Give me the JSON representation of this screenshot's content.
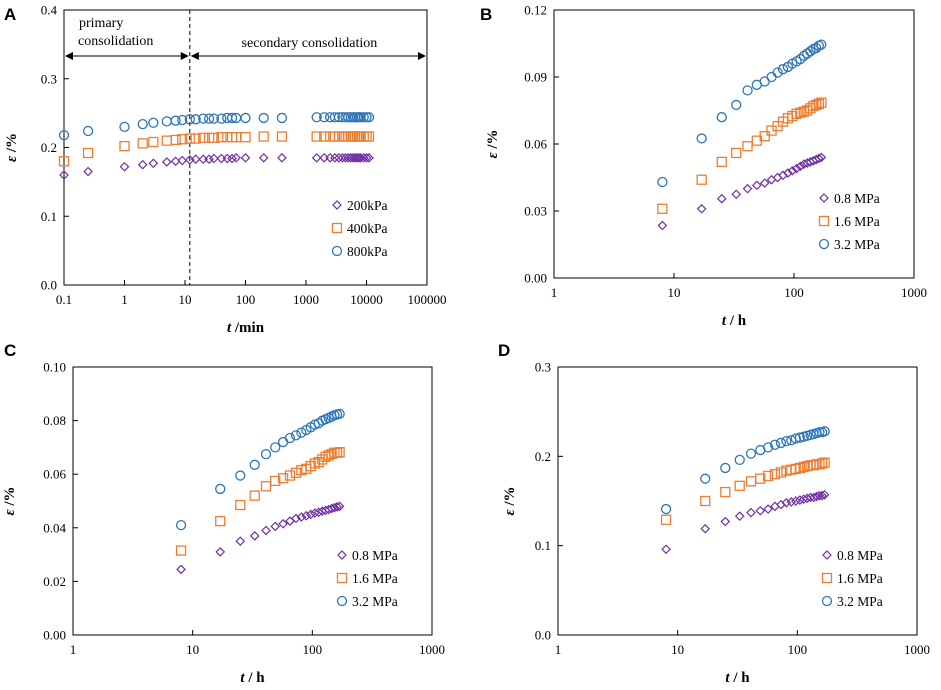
{
  "colors": {
    "purple": "#7030a0",
    "orange": "#ed7d31",
    "blue": "#2e75b6"
  },
  "chart_data": [
    {
      "panel": "A",
      "type": "scatter",
      "xscale": "log",
      "xlim": [
        0.1,
        100000
      ],
      "ylim": [
        0,
        0.4
      ],
      "xticks": [
        "0.1",
        "1",
        "10",
        "100",
        "1000",
        "10000",
        "100000"
      ],
      "yticks": [
        "0.0",
        "0.1",
        "0.2",
        "0.3",
        "0.4"
      ],
      "xlabel_var": "t",
      "xlabel_unit": " /min",
      "ylabel_var": "ε",
      "ylabel_unit": " /%",
      "legend_position": "bottom-right",
      "annotations": {
        "primary_line1": "primary",
        "primary_line2": "consolidation",
        "secondary": "secondary consolidation",
        "divider_x": 12
      },
      "series": [
        {
          "name": "200kPa",
          "marker": "diamond",
          "color": "purple",
          "x": [
            0.1,
            0.25,
            1,
            2,
            3,
            5,
            7,
            9,
            12,
            15,
            20,
            25,
            30,
            40,
            50,
            60,
            70,
            100,
            200,
            400,
            1500,
            2000,
            2500,
            3000,
            3500,
            4000,
            4500,
            5000,
            5500,
            6000,
            6500,
            7000,
            7500,
            8000,
            9000,
            10000,
            11000
          ],
          "y": [
            0.16,
            0.165,
            0.172,
            0.175,
            0.177,
            0.179,
            0.18,
            0.181,
            0.182,
            0.183,
            0.183,
            0.183,
            0.184,
            0.184,
            0.184,
            0.184,
            0.185,
            0.185,
            0.185,
            0.185,
            0.185,
            0.185,
            0.185,
            0.185,
            0.185,
            0.185,
            0.185,
            0.185,
            0.185,
            0.185,
            0.185,
            0.185,
            0.185,
            0.185,
            0.185,
            0.185,
            0.185
          ]
        },
        {
          "name": "400kPa",
          "marker": "square",
          "color": "orange",
          "x": [
            0.1,
            0.25,
            1,
            2,
            3,
            5,
            7,
            9,
            12,
            15,
            20,
            25,
            30,
            40,
            50,
            60,
            70,
            100,
            200,
            400,
            1500,
            2000,
            2500,
            3000,
            3500,
            4000,
            4500,
            5000,
            5500,
            6000,
            6500,
            7000,
            7500,
            8000,
            9000,
            10000,
            11000
          ],
          "y": [
            0.18,
            0.192,
            0.202,
            0.206,
            0.208,
            0.21,
            0.211,
            0.212,
            0.213,
            0.213,
            0.214,
            0.214,
            0.214,
            0.215,
            0.215,
            0.215,
            0.215,
            0.215,
            0.216,
            0.216,
            0.216,
            0.216,
            0.216,
            0.216,
            0.216,
            0.216,
            0.216,
            0.216,
            0.216,
            0.216,
            0.216,
            0.216,
            0.216,
            0.216,
            0.216,
            0.216,
            0.216
          ]
        },
        {
          "name": "800kPa",
          "marker": "circle",
          "color": "blue",
          "x": [
            0.1,
            0.25,
            1,
            2,
            3,
            5,
            7,
            9,
            12,
            15,
            20,
            25,
            30,
            40,
            50,
            60,
            70,
            100,
            200,
            400,
            1500,
            2000,
            2500,
            3000,
            3500,
            4000,
            4500,
            5000,
            5500,
            6000,
            6500,
            7000,
            7500,
            8000,
            9000,
            10000,
            11000
          ],
          "y": [
            0.218,
            0.224,
            0.23,
            0.234,
            0.236,
            0.238,
            0.239,
            0.24,
            0.241,
            0.241,
            0.242,
            0.242,
            0.242,
            0.242,
            0.243,
            0.243,
            0.243,
            0.243,
            0.243,
            0.243,
            0.244,
            0.244,
            0.244,
            0.244,
            0.244,
            0.244,
            0.244,
            0.244,
            0.244,
            0.244,
            0.244,
            0.244,
            0.244,
            0.244,
            0.244,
            0.244,
            0.244
          ]
        }
      ]
    },
    {
      "panel": "B",
      "type": "scatter",
      "xscale": "log",
      "xlim": [
        1,
        1000
      ],
      "ylim": [
        0,
        0.12
      ],
      "xticks": [
        "1",
        "10",
        "100",
        "1000"
      ],
      "yticks": [
        "0.00",
        "0.03",
        "0.06",
        "0.09",
        "0.12"
      ],
      "xlabel_var": "t",
      "xlabel_unit": " / h",
      "ylabel_var": "ε",
      "ylabel_unit": " /%",
      "legend_position": "bottom-right",
      "series": [
        {
          "name": "0.8 MPa",
          "marker": "diamond",
          "color": "purple",
          "x": [
            8,
            17,
            25,
            33,
            41,
            49,
            57,
            65,
            73,
            81,
            89,
            97,
            105,
            113,
            121,
            129,
            137,
            145,
            153,
            161,
            169
          ],
          "y": [
            0.0235,
            0.031,
            0.0355,
            0.0375,
            0.04,
            0.0415,
            0.0425,
            0.044,
            0.045,
            0.046,
            0.047,
            0.048,
            0.049,
            0.05,
            0.051,
            0.0515,
            0.052,
            0.0525,
            0.053,
            0.0535,
            0.054
          ]
        },
        {
          "name": "1.6 MPa",
          "marker": "square",
          "color": "orange",
          "x": [
            8,
            17,
            25,
            33,
            41,
            49,
            57,
            65,
            73,
            81,
            89,
            97,
            105,
            113,
            121,
            129,
            137,
            145,
            153,
            161,
            169
          ],
          "y": [
            0.031,
            0.044,
            0.052,
            0.056,
            0.059,
            0.0615,
            0.0635,
            0.066,
            0.068,
            0.07,
            0.0715,
            0.0725,
            0.0735,
            0.074,
            0.0745,
            0.075,
            0.076,
            0.077,
            0.0775,
            0.078,
            0.0785
          ]
        },
        {
          "name": "3.2 MPa",
          "marker": "circle",
          "color": "blue",
          "x": [
            8,
            17,
            25,
            33,
            41,
            49,
            57,
            65,
            73,
            81,
            89,
            97,
            105,
            113,
            121,
            129,
            137,
            145,
            153,
            161,
            169
          ],
          "y": [
            0.043,
            0.0625,
            0.072,
            0.0775,
            0.084,
            0.0865,
            0.088,
            0.09,
            0.092,
            0.0935,
            0.0945,
            0.096,
            0.097,
            0.098,
            0.0995,
            0.1005,
            0.1015,
            0.1025,
            0.103,
            0.104,
            0.1045
          ]
        }
      ]
    },
    {
      "panel": "C",
      "type": "scatter",
      "xscale": "log",
      "xlim": [
        1,
        1000
      ],
      "ylim": [
        0,
        0.1
      ],
      "xticks": [
        "1",
        "10",
        "100",
        "1000"
      ],
      "yticks": [
        "0.00",
        "0.02",
        "0.04",
        "0.06",
        "0.08",
        "0.10"
      ],
      "xlabel_var": "t",
      "xlabel_unit": " / h",
      "ylabel_var": "ε",
      "ylabel_unit": " /%",
      "legend_position": "bottom-right",
      "series": [
        {
          "name": "0.8 MPa",
          "marker": "diamond",
          "color": "purple",
          "x": [
            8,
            17,
            25,
            33,
            41,
            49,
            57,
            65,
            73,
            81,
            89,
            97,
            105,
            113,
            121,
            129,
            137,
            145,
            153,
            161,
            169
          ],
          "y": [
            0.0245,
            0.031,
            0.035,
            0.037,
            0.039,
            0.0405,
            0.0415,
            0.0425,
            0.0435,
            0.044,
            0.0445,
            0.045,
            0.0455,
            0.0458,
            0.0462,
            0.0465,
            0.0468,
            0.0472,
            0.0475,
            0.0478,
            0.048
          ]
        },
        {
          "name": "1.6 MPa",
          "marker": "square",
          "color": "orange",
          "x": [
            8,
            17,
            25,
            33,
            41,
            49,
            57,
            65,
            73,
            81,
            89,
            97,
            105,
            113,
            121,
            129,
            137,
            145,
            153,
            161,
            169
          ],
          "y": [
            0.0315,
            0.0425,
            0.0485,
            0.052,
            0.0555,
            0.0575,
            0.0585,
            0.0595,
            0.0605,
            0.0615,
            0.062,
            0.063,
            0.064,
            0.0645,
            0.0655,
            0.0665,
            0.067,
            0.0675,
            0.068,
            0.068,
            0.0682
          ]
        },
        {
          "name": "3.2 MPa",
          "marker": "circle",
          "color": "blue",
          "x": [
            8,
            17,
            25,
            33,
            41,
            49,
            57,
            65,
            73,
            81,
            89,
            97,
            105,
            113,
            121,
            129,
            137,
            145,
            153,
            161,
            169
          ],
          "y": [
            0.041,
            0.0545,
            0.0595,
            0.0635,
            0.0675,
            0.07,
            0.072,
            0.0735,
            0.0745,
            0.0755,
            0.0765,
            0.0775,
            0.0785,
            0.079,
            0.08,
            0.0805,
            0.081,
            0.0815,
            0.082,
            0.0823,
            0.0825
          ]
        }
      ]
    },
    {
      "panel": "D",
      "type": "scatter",
      "xscale": "log",
      "xlim": [
        1,
        1000
      ],
      "ylim": [
        0,
        0.3
      ],
      "xticks": [
        "1",
        "10",
        "100",
        "1000"
      ],
      "yticks": [
        "0.0",
        "0.1",
        "0.2",
        "0.3"
      ],
      "xlabel_var": "t",
      "xlabel_unit": " / h",
      "ylabel_var": "ε",
      "ylabel_unit": " /%",
      "legend_position": "bottom-right",
      "series": [
        {
          "name": "0.8 MPa",
          "marker": "diamond",
          "color": "purple",
          "x": [
            8,
            17,
            25,
            33,
            41,
            49,
            57,
            65,
            73,
            81,
            89,
            97,
            105,
            113,
            121,
            129,
            137,
            145,
            153,
            161,
            169
          ],
          "y": [
            0.096,
            0.119,
            0.127,
            0.133,
            0.137,
            0.139,
            0.141,
            0.144,
            0.146,
            0.148,
            0.149,
            0.15,
            0.151,
            0.152,
            0.153,
            0.154,
            0.154,
            0.155,
            0.156,
            0.156,
            0.157
          ]
        },
        {
          "name": "1.6 MPa",
          "marker": "square",
          "color": "orange",
          "x": [
            8,
            17,
            25,
            33,
            41,
            49,
            57,
            65,
            73,
            81,
            89,
            97,
            105,
            113,
            121,
            129,
            137,
            145,
            153,
            161,
            169
          ],
          "y": [
            0.129,
            0.15,
            0.16,
            0.167,
            0.172,
            0.175,
            0.178,
            0.18,
            0.182,
            0.184,
            0.185,
            0.186,
            0.187,
            0.188,
            0.189,
            0.19,
            0.19,
            0.191,
            0.191,
            0.192,
            0.193
          ]
        },
        {
          "name": "3.2 MPa",
          "marker": "circle",
          "color": "blue",
          "x": [
            8,
            17,
            25,
            33,
            41,
            49,
            57,
            65,
            73,
            81,
            89,
            97,
            105,
            113,
            121,
            129,
            137,
            145,
            153,
            161,
            169
          ],
          "y": [
            0.141,
            0.175,
            0.187,
            0.196,
            0.203,
            0.207,
            0.21,
            0.213,
            0.215,
            0.217,
            0.218,
            0.22,
            0.221,
            0.222,
            0.223,
            0.224,
            0.225,
            0.226,
            0.227,
            0.227,
            0.228
          ]
        }
      ]
    }
  ]
}
